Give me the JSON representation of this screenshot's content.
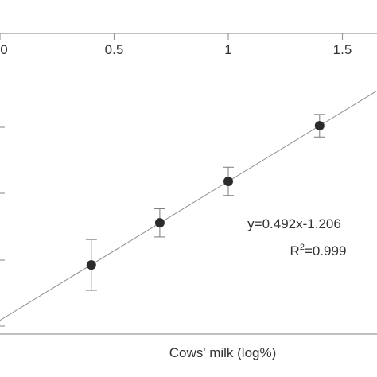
{
  "chart_data": {
    "type": "scatter",
    "xlabel": "Cows' milk (log%)",
    "x_ticks": [
      0,
      0.5,
      1,
      1.5
    ],
    "x_tick_labels": [
      "0",
      "0.5",
      "1",
      "1.5"
    ],
    "points": [
      {
        "x": 0.4,
        "y": -1.01,
        "err": 0.09
      },
      {
        "x": 0.7,
        "y": -0.861,
        "err": 0.05
      },
      {
        "x": 1.0,
        "y": -0.714,
        "err": 0.05
      },
      {
        "x": 1.4,
        "y": -0.517,
        "err": 0.04
      }
    ],
    "fit": {
      "slope": 0.492,
      "intercept": -1.206
    },
    "annotations": {
      "equation": "y=0.492x-1.206",
      "r2_prefix": "R",
      "r2_sup": "2",
      "r2_value": "=0.999"
    },
    "colors": {
      "point": "#2b2b2b",
      "axis": "#9a9a9a",
      "line": "#8f8f8f"
    }
  }
}
